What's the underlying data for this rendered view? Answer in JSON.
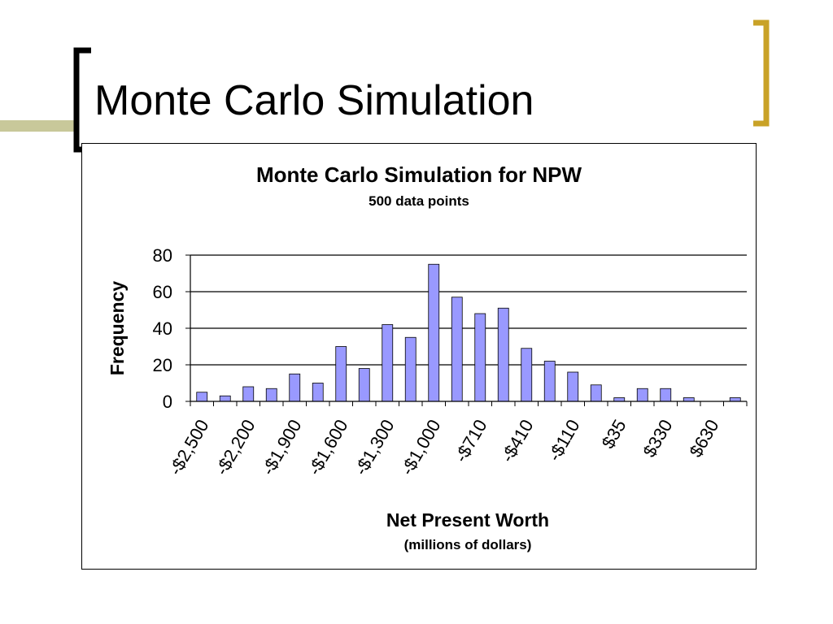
{
  "slide": {
    "title": "Monte Carlo Simulation",
    "accent_color": "#C9A227",
    "band_color": "#C8C89A"
  },
  "chart_data": {
    "type": "bar",
    "title": "Monte Carlo Simulation for NPW",
    "subtitle": "500 data points",
    "xlabel": "Net Present Worth",
    "xlabel_sub": "(millions of dollars)",
    "ylabel": "Frequency",
    "ylim": [
      0,
      80
    ],
    "yticks": [
      0,
      20,
      40,
      60,
      80
    ],
    "grid": true,
    "bar_color": "#9999FF",
    "values": [
      5,
      3,
      8,
      7,
      15,
      10,
      30,
      18,
      42,
      35,
      75,
      57,
      48,
      51,
      29,
      22,
      16,
      9,
      2,
      7,
      7,
      2,
      0,
      2
    ],
    "tick_labels": [
      "-$2,500",
      "-$2,200",
      "-$1,900",
      "-$1,600",
      "-$1,300",
      "-$1,000",
      "-$710",
      "-$410",
      "-$110",
      "$35",
      "$330",
      "$630"
    ],
    "tick_label_every": 2
  }
}
